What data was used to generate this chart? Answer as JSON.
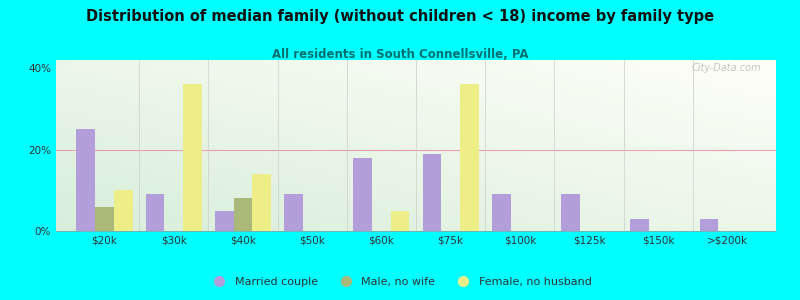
{
  "title": "Distribution of median family (without children < 18) income by family type",
  "subtitle": "All residents in South Connellsville, PA",
  "background_color": "#00FFFF",
  "categories": [
    "$20k",
    "$30k",
    "$40k",
    "$50k",
    "$60k",
    "$75k",
    "$100k",
    "$125k",
    "$150k",
    ">$200k"
  ],
  "married_couple": [
    25,
    9,
    5,
    9,
    18,
    19,
    9,
    9,
    3,
    3
  ],
  "male_no_wife": [
    6,
    0,
    8,
    0,
    0,
    0,
    0,
    0,
    0,
    0
  ],
  "female_no_husband": [
    10,
    36,
    14,
    0,
    5,
    36,
    0,
    0,
    0,
    0
  ],
  "married_color": "#b39ddb",
  "male_color": "#aab87a",
  "female_color": "#eeee88",
  "ylim": [
    0,
    42
  ],
  "yticks": [
    0,
    20,
    40
  ],
  "ytick_labels": [
    "0%",
    "20%",
    "40%"
  ],
  "bar_width": 0.27,
  "watermark": "City-Data.com",
  "legend_items": [
    "Married couple",
    "Male, no wife",
    "Female, no husband"
  ]
}
